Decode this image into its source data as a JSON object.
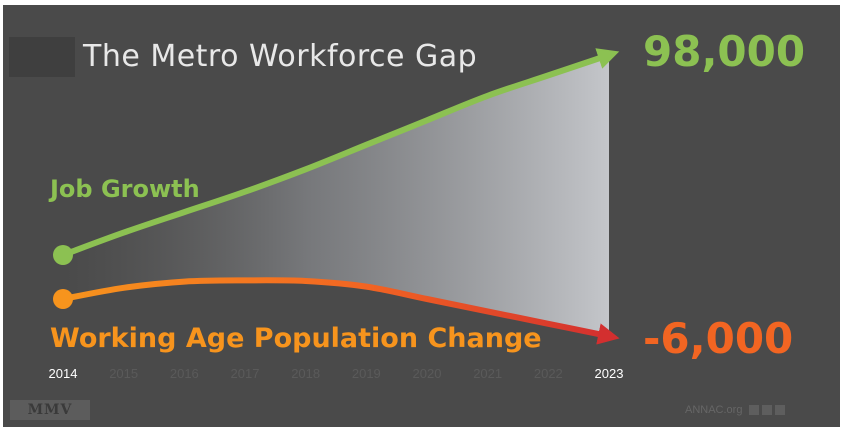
{
  "slide": {
    "title": "The Metro Workforce Gap",
    "footer_logo": "MMV",
    "footer_site": "ANNAC.org"
  },
  "chart_data": {
    "type": "line",
    "title": "The Metro Workforce Gap",
    "x": [
      "2014",
      "2015",
      "2016",
      "2017",
      "2018",
      "2019",
      "2020",
      "2021",
      "2022",
      "2023"
    ],
    "highlighted_ticks": [
      "2014",
      "2023"
    ],
    "series": [
      {
        "name": "Job Growth",
        "end_label": "98,000",
        "color": "#8cc152",
        "values": [
          0,
          11000,
          21000,
          31000,
          42000,
          54000,
          66000,
          78000,
          88000,
          98000
        ]
      },
      {
        "name": "Working Age Population Change",
        "end_label": "-6,000",
        "color": "#f7941d",
        "end_color": "#d32f2f",
        "values": [
          0,
          1800,
          2800,
          3000,
          2900,
          2000,
          0,
          -2000,
          -4000,
          -6000
        ]
      }
    ],
    "gap_fill": true,
    "grid": false,
    "legend": "inline"
  }
}
